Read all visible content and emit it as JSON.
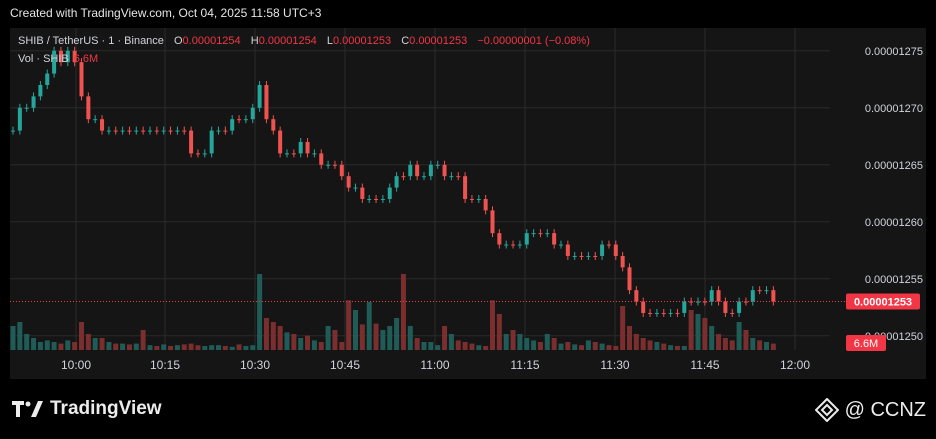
{
  "caption": "Created with TradingView.com, Oct 04, 2025 11:58 UTC+3",
  "legend": {
    "symbol": "SHIB / TetherUS · 1 · Binance",
    "open_label": "O",
    "open": "0.00001254",
    "high_label": "H",
    "high": "0.00001254",
    "low_label": "L",
    "low": "0.00001253",
    "close_label": "C",
    "close": "0.00001253",
    "change": "−0.00000001 (−0.08%)"
  },
  "volume_legend": {
    "label": "Vol · SHIB",
    "value": "6.6M"
  },
  "brand": {
    "logo_text": "TradingView"
  },
  "watermark": {
    "text": "@ CCNZ"
  },
  "colors": {
    "up": "#26a69a",
    "down": "#ef5350",
    "vol_up": "#1f5c57",
    "vol_down": "#7a2e2e",
    "price_tag": "#f23645"
  },
  "chart_data": {
    "type": "candlestick",
    "interval": "1 minute",
    "x_ticks": [
      "10:00",
      "10:15",
      "10:30",
      "10:45",
      "11:00",
      "11:15",
      "11:30",
      "11:45",
      "12:00"
    ],
    "y_ticks": [
      "0.00001275",
      "0.00001270",
      "0.00001265",
      "0.00001260",
      "0.00001255",
      "0.00001250"
    ],
    "ylim": [
      1.24875e-05,
      1.277e-05
    ],
    "last_price": "0.00001253",
    "last_volume": "6.6M",
    "price_series_e8": [
      1268,
      1270,
      1270,
      1271,
      1272,
      1273,
      1275,
      1274,
      1275,
      1274,
      1271,
      1269,
      1269,
      1268,
      1268,
      1268,
      1268,
      1268,
      1268,
      1268,
      1268,
      1268,
      1268,
      1268,
      1268,
      1268,
      1266,
      1266,
      1266,
      1268,
      1268,
      1268,
      1269,
      1269,
      1269,
      1270,
      1272,
      1269,
      1268,
      1266,
      1266,
      1266,
      1267,
      1266,
      1266,
      1265,
      1265,
      1265,
      1264,
      1263,
      1263,
      1262,
      1262,
      1262,
      1262,
      1263,
      1264,
      1264,
      1265,
      1264,
      1264,
      1265,
      1265,
      1264,
      1264,
      1264,
      1262,
      1262,
      1262,
      1261,
      1259,
      1258,
      1258,
      1258,
      1258,
      1259,
      1259,
      1259,
      1259,
      1258,
      1258,
      1257,
      1257,
      1257,
      1257,
      1257,
      1258,
      1258,
      1257,
      1256,
      1254,
      1253,
      1252,
      1252,
      1252,
      1252,
      1252,
      1252,
      1253,
      1253,
      1253,
      1253,
      1254,
      1253,
      1252,
      1252,
      1253,
      1253,
      1254,
      1254,
      1254,
      1253
    ],
    "volume_relative": [
      0.3,
      0.35,
      0.2,
      0.15,
      0.1,
      0.12,
      0.1,
      0.08,
      0.12,
      0.1,
      0.35,
      0.2,
      0.15,
      0.15,
      0.1,
      0.08,
      0.08,
      0.07,
      0.08,
      0.25,
      0.06,
      0.05,
      0.07,
      0.05,
      0.06,
      0.07,
      0.08,
      0.06,
      0.05,
      0.06,
      0.06,
      0.05,
      0.04,
      0.07,
      0.05,
      0.06,
      0.95,
      0.4,
      0.35,
      0.3,
      0.22,
      0.2,
      0.15,
      0.18,
      0.12,
      0.1,
      0.3,
      0.25,
      0.1,
      0.62,
      0.5,
      0.32,
      0.6,
      0.33,
      0.25,
      0.3,
      0.4,
      0.95,
      0.3,
      0.15,
      0.1,
      0.1,
      0.06,
      0.3,
      0.2,
      0.12,
      0.1,
      0.08,
      0.06,
      0.05,
      0.62,
      0.45,
      0.2,
      0.25,
      0.2,
      0.15,
      0.12,
      0.1,
      0.2,
      0.15,
      0.08,
      0.1,
      0.07,
      0.06,
      0.12,
      0.1,
      0.08,
      0.06,
      0.05,
      0.55,
      0.3,
      0.2,
      0.15,
      0.12,
      0.1,
      0.08,
      0.06,
      0.05,
      0.05,
      0.5,
      0.45,
      0.4,
      0.3,
      0.2,
      0.15,
      0.12,
      0.35,
      0.25,
      0.15,
      0.12,
      0.1,
      0.08
    ]
  }
}
